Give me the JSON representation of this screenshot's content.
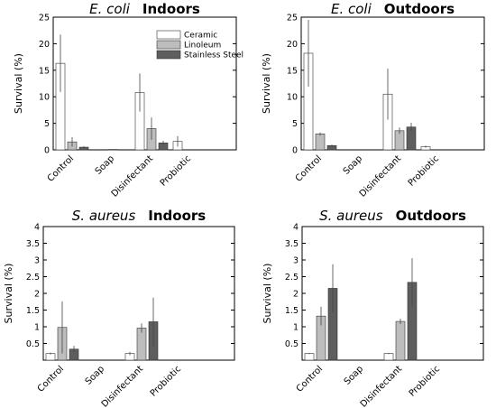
{
  "figure": {
    "colors": {
      "Ceramic": "#ffffff",
      "Linoleum": "#bdbdbd",
      "Stainless Steel": "#5e5e5e",
      "axis": "#000000",
      "error_bar": "#444444"
    }
  },
  "chart_data": [
    {
      "type": "bar",
      "title_organism": "E. coli",
      "title_location": "Indoors",
      "ylabel": "Survival (%)",
      "ylim": [
        0,
        25
      ],
      "yticks": [
        0,
        5,
        10,
        15,
        20,
        25
      ],
      "categories": [
        "Control",
        "Soap",
        "Disinfectant",
        "Probiotic"
      ],
      "legend": {
        "placement": "top-right",
        "entries": [
          "Ceramic",
          "Linoleum",
          "Stainless Steel"
        ]
      },
      "series": [
        {
          "name": "Ceramic",
          "values": [
            16.3,
            0,
            10.8,
            1.6
          ],
          "errors": [
            5.4,
            0,
            3.6,
            1.0
          ]
        },
        {
          "name": "Linoleum",
          "values": [
            1.5,
            0.1,
            4.0,
            0
          ],
          "errors": [
            0.9,
            0,
            2.1,
            0
          ]
        },
        {
          "name": "Stainless Steel",
          "values": [
            0.5,
            0,
            1.3,
            0
          ],
          "errors": [
            0.2,
            0,
            0.4,
            0
          ]
        }
      ]
    },
    {
      "type": "bar",
      "title_organism": "E. coli",
      "title_location": "Outdoors",
      "ylabel": "Survival (%)",
      "ylim": [
        0,
        25
      ],
      "yticks": [
        0,
        5,
        10,
        15,
        20,
        25
      ],
      "categories": [
        "Control",
        "Soap",
        "Disinfectant",
        "Probiotic"
      ],
      "series": [
        {
          "name": "Ceramic",
          "values": [
            18.2,
            0,
            10.5,
            0.6
          ],
          "errors": [
            6.3,
            0,
            4.8,
            0.2
          ]
        },
        {
          "name": "Linoleum",
          "values": [
            3.0,
            0,
            3.6,
            0
          ],
          "errors": [
            0.3,
            0,
            0.6,
            0
          ]
        },
        {
          "name": "Stainless Steel",
          "values": [
            0.8,
            0,
            4.3,
            0
          ],
          "errors": [
            0.2,
            0,
            0.8,
            0
          ]
        }
      ]
    },
    {
      "type": "bar",
      "title_organism": "S. aureus",
      "title_location": "Indoors",
      "ylabel": "Survival (%)",
      "ylim": [
        0,
        4
      ],
      "yticks": [
        0.5,
        1,
        1.5,
        2,
        2.5,
        3,
        3.5,
        4
      ],
      "categories": [
        "Control",
        "Soap",
        "Disinfectant",
        "Probiotic"
      ],
      "series": [
        {
          "name": "Ceramic",
          "values": [
            0.2,
            0,
            0.2,
            0
          ],
          "errors": [
            0.03,
            0,
            0.05,
            0
          ]
        },
        {
          "name": "Linoleum",
          "values": [
            0.98,
            0,
            0.96,
            0
          ],
          "errors": [
            0.78,
            0,
            0.14,
            0
          ]
        },
        {
          "name": "Stainless Steel",
          "values": [
            0.33,
            0,
            1.15,
            0
          ],
          "errors": [
            0.1,
            0,
            0.72,
            0
          ]
        }
      ]
    },
    {
      "type": "bar",
      "title_organism": "S. aureus",
      "title_location": "Outdoors",
      "ylabel": "Survival (%)",
      "ylim": [
        0,
        4
      ],
      "yticks": [
        0.5,
        1,
        1.5,
        2,
        2.5,
        3,
        3.5,
        4
      ],
      "categories": [
        "Control",
        "Soap",
        "Disinfectant",
        "Probiotic"
      ],
      "series": [
        {
          "name": "Ceramic",
          "values": [
            0.2,
            0,
            0.2,
            0
          ],
          "errors": [
            0.02,
            0,
            0.02,
            0
          ]
        },
        {
          "name": "Linoleum",
          "values": [
            1.32,
            0,
            1.16,
            0
          ],
          "errors": [
            0.28,
            0,
            0.08,
            0
          ]
        },
        {
          "name": "Stainless Steel",
          "values": [
            2.15,
            0,
            2.33,
            0
          ],
          "errors": [
            0.72,
            0,
            0.72,
            0
          ]
        }
      ]
    }
  ]
}
